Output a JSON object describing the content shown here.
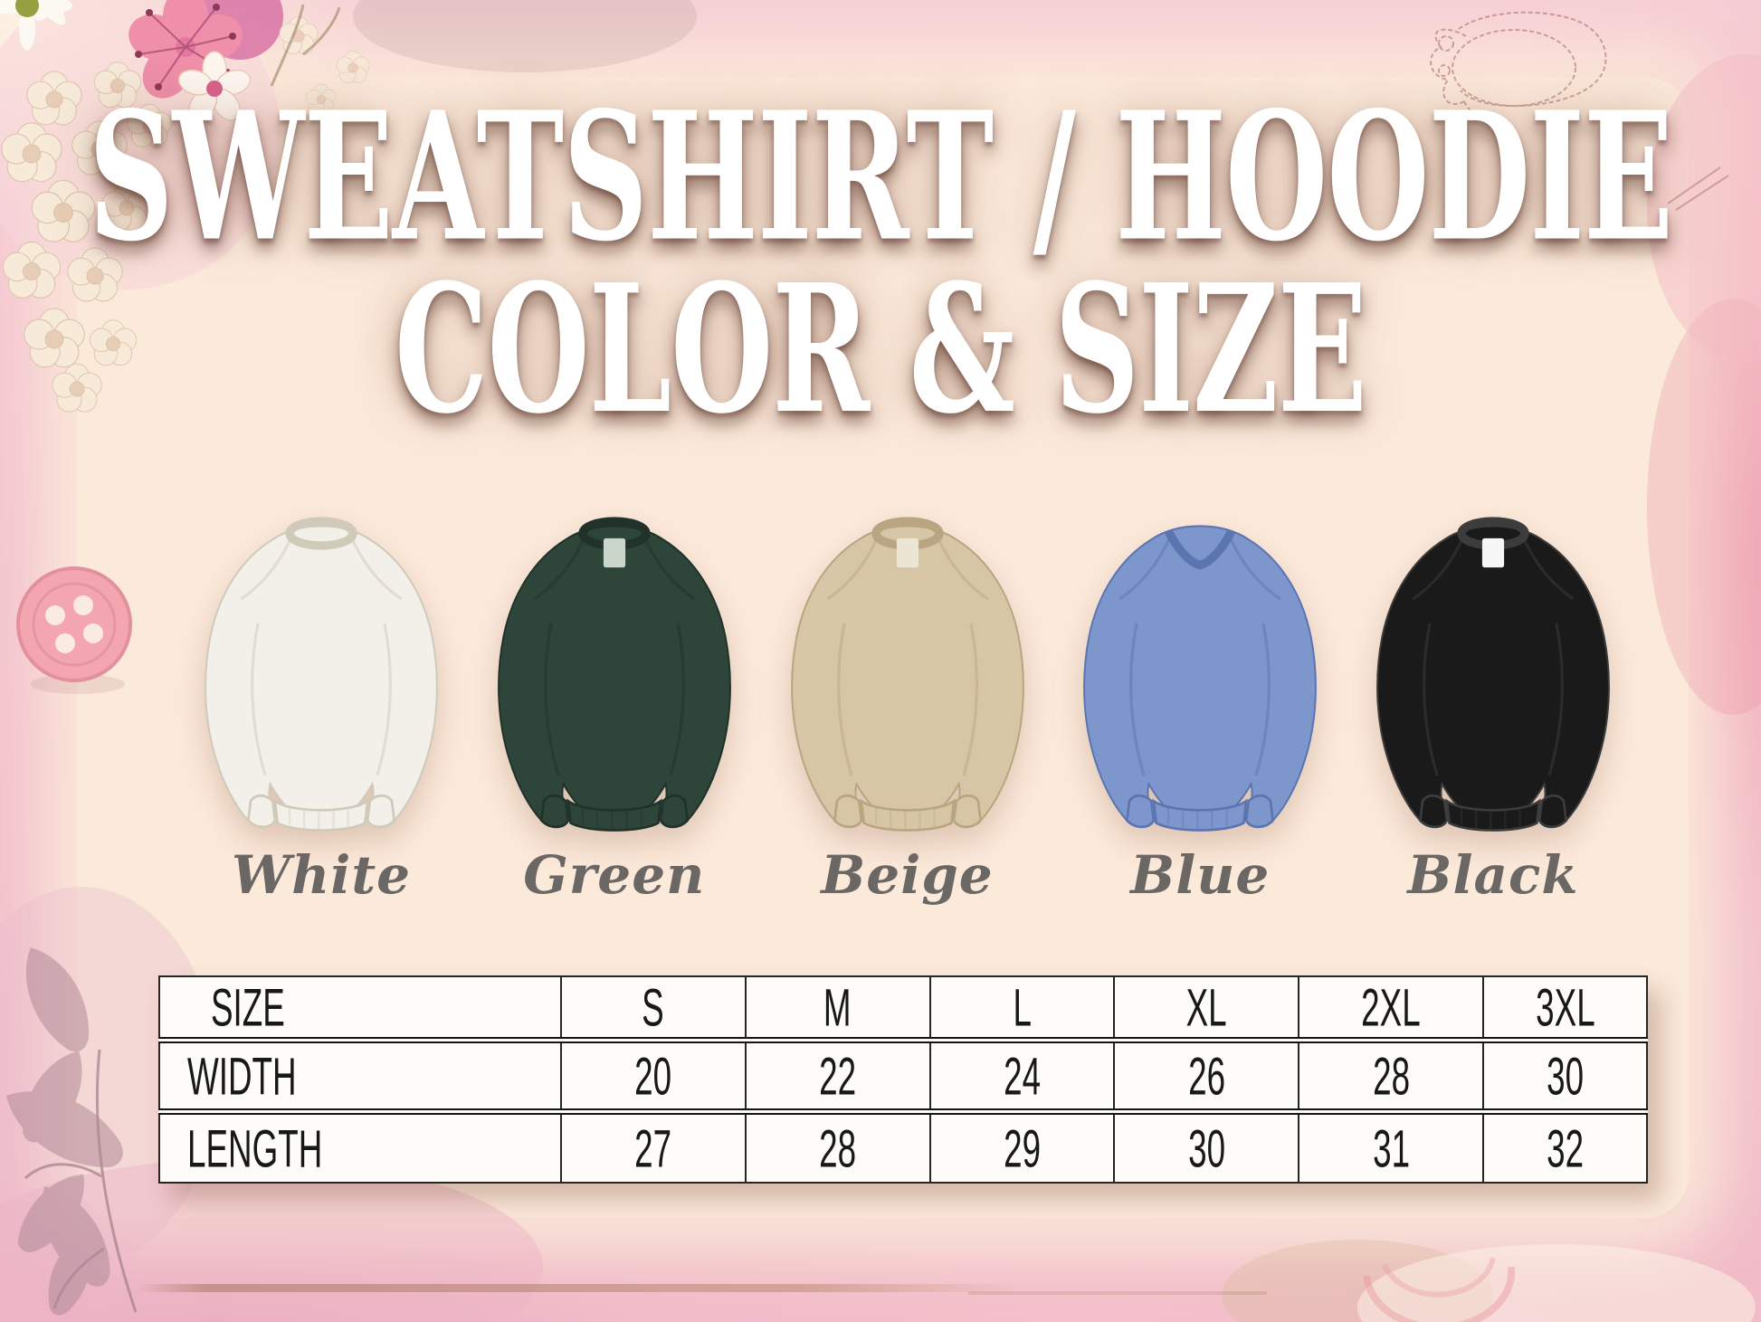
{
  "title": {
    "line1": "SWEATSHIRT / HOODIE",
    "line2": "COLOR & SIZE"
  },
  "products": {
    "items": [
      {
        "name": "White",
        "fill": "#f3f0e9",
        "line": "#d0cabb",
        "neck": "crew",
        "tag": null
      },
      {
        "name": "Green",
        "fill": "#2e4539",
        "line": "#20322a",
        "neck": "crew",
        "tag": "#ccd5c9"
      },
      {
        "name": "Beige",
        "fill": "#d7c6a6",
        "line": "#b9a581",
        "neck": "crew",
        "tag": "#ece5d3"
      },
      {
        "name": "Blue",
        "fill": "#7d96cc",
        "line": "#5b75b1",
        "neck": "v",
        "tag": null
      },
      {
        "name": "Black",
        "fill": "#1a1a1a",
        "line": "#3c3c3c",
        "neck": "crew",
        "tag": "#f7f7f7"
      }
    ]
  },
  "size_chart": {
    "columns": [
      "SIZE",
      "S",
      "M",
      "L",
      "XL",
      "2XL",
      "3XL"
    ],
    "rows": [
      {
        "label": "WIDTH",
        "values": [
          "20",
          "22",
          "24",
          "26",
          "28",
          "30"
        ]
      },
      {
        "label": "LENGTH",
        "values": [
          "27",
          "28",
          "29",
          "30",
          "31",
          "32"
        ]
      }
    ]
  },
  "colors": {
    "panel_bg": "#fbe9da",
    "border_pink": "#f4c3cd",
    "title_text": "#ffffff",
    "title_shadow": "#5e3a2e",
    "label_text": "#6b6765",
    "table_bg": "#fefcf9",
    "table_line": "#262626",
    "button_pink": "#f3a6b0"
  }
}
